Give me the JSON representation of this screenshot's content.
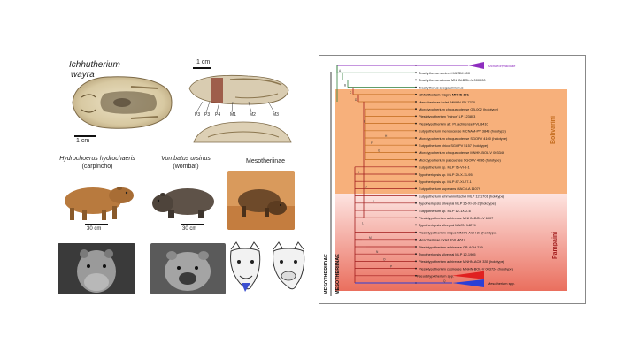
{
  "left_panel": {
    "species_title_line1": "Ichhutherium",
    "species_title_line2": "wayra",
    "scale_1cm_a": "1 cm",
    "scale_1cm_b": "1 cm",
    "teeth_labels": [
      "P3",
      "P3",
      "P4",
      "M1",
      "M2",
      "M3"
    ],
    "animals": [
      {
        "name": "Hydrochoerus hydrochaeris",
        "common": "(carpincho)",
        "scale": "30 cm"
      },
      {
        "name": "Vombatus ursinus",
        "common": "(wombat)",
        "scale": "30 cm"
      },
      {
        "name": "Mesotheriinae",
        "common": "",
        "scale": ""
      }
    ]
  },
  "tree": {
    "taxa": [
      "Archaeohyracidae",
      "Trachytherus ramirezi MUSM 000",
      "Trachytherus alloxus MNHN-BOL-V 000000",
      "Trachytherus spegazzinianus",
      "Ichhutherium wayra MNHS 101",
      "Mesotheriinae indet. MNHN-PV 7700",
      "Microtypotherium choquecotense GB-002 (holotype)",
      "Plesiotypotherium \"minor\" LP 123803",
      "Plesiotypotherium aff. Pl. achirense FVL 8410",
      "Eutypotherium mendocense MCNAM-PV 3848 (holotype)",
      "Microtypotherium choquecotense SGOPV 4100 (holotype)",
      "Eutypotherium chico SGOPV 5157 (holotype)",
      "Microtypotherium choquecotense MNHN-BOL-V 003349",
      "Microtypotherium pascuense SGOPV 4096 (holotype)",
      "Eutypotherium sp. MLP 76-VI-5-1",
      "Typotheriopsis sp. MLP 29-X-11-95",
      "Typotheriopsis sp. MLP 87-XI-27-1",
      "Eutypotherium superans MACN-A 11079",
      "Eutypotherium lehmannnitschei MLP 12-1701 (holotype)",
      "Typotheriopsis silveyrai MLP 36-XI-10-2 (holotype)",
      "Eutypotherium sp. MLP 12-1X-2-6",
      "Plesiotypotherium achirense MNHN-BOL-V 6007",
      "Typotheriopsis silveyrai MACN 14274",
      "Plesiotypotherium majus MNHN-ACH 27 (holotype)",
      "Mesotheriinae indet. FVL 4617",
      "Plesiotypotherium achirense GB-ACH 229",
      "Typotheriopsis silveyrai MLP 12-1965",
      "Plesiotypotherium achirense MNHN-ACH 335 (holotype)",
      "Plesiotypotherium casirense MNHN-BOL-V 003724 (holotype)",
      "Pseudotypotherium spp.",
      "Mesotherium spp."
    ],
    "group_labels": {
      "bolivarini": "Bolivarini",
      "pampaini": "Pampaini",
      "mesotheriidae": "MESOTHERIIDAE",
      "mesotheriinae": "MESOTHERIINAE"
    },
    "node_letters": [
      "A",
      "B",
      "C",
      "D",
      "E",
      "F",
      "G",
      "H",
      "I",
      "J",
      "K",
      "L",
      "M",
      "N",
      "O",
      "P",
      "Q"
    ],
    "colors": {
      "purple": "#8e2dbf",
      "green": "#2f7d3a",
      "orange_bg": "#f6a36a",
      "pink_bg": "#f7b9b4",
      "red_bg": "#e86b5a",
      "bolivarini_line": "#c26a1c",
      "pampaini_line": "#a11c1c",
      "blue": "#2b3fd6",
      "red": "#e02020"
    }
  }
}
